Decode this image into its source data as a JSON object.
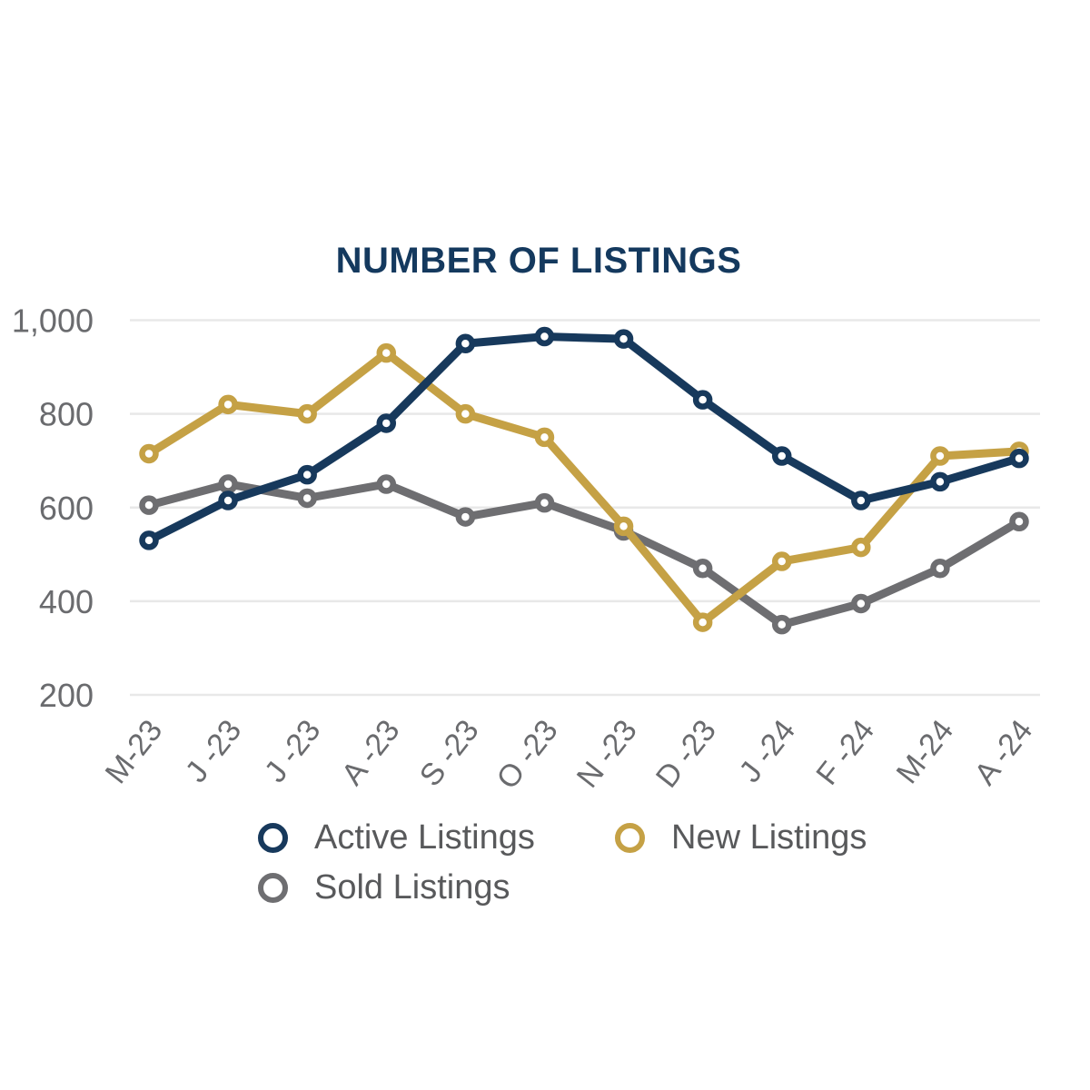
{
  "chart_data": {
    "type": "line",
    "title": "NUMBER OF LISTINGS",
    "categories": [
      "M-23",
      "J -23",
      "J -23",
      "A -23",
      "S -23",
      "O -23",
      "N -23",
      "D -23",
      "J -24",
      "F -24",
      "M-24",
      "A -24"
    ],
    "series": [
      {
        "name": "Active Listings",
        "color": "#17395C",
        "values": [
          530,
          615,
          670,
          780,
          950,
          965,
          960,
          830,
          710,
          615,
          655,
          705
        ]
      },
      {
        "name": "New Listings",
        "color": "#C5A145",
        "values": [
          715,
          820,
          800,
          930,
          800,
          750,
          560,
          355,
          485,
          515,
          710,
          720
        ]
      },
      {
        "name": "Sold Listings",
        "color": "#6E6E71",
        "values": [
          605,
          650,
          620,
          650,
          580,
          610,
          550,
          470,
          350,
          395,
          470,
          570
        ]
      }
    ],
    "y_axis": {
      "ticks": [
        1000,
        800,
        600,
        400,
        200
      ],
      "tick_labels": [
        "1,000",
        "800",
        "600",
        "400",
        "200"
      ],
      "range": [
        200,
        1000
      ]
    },
    "grid": "horizontal",
    "legend_position": "bottom"
  },
  "palette": {
    "title_color": "#14395E",
    "axis_label_color": "#6A6B6E",
    "legend_text_color": "#58595B",
    "gridline_color": "#E8E8E8",
    "background": "#FFFFFF",
    "marker_fill": "#FFFFFF"
  }
}
